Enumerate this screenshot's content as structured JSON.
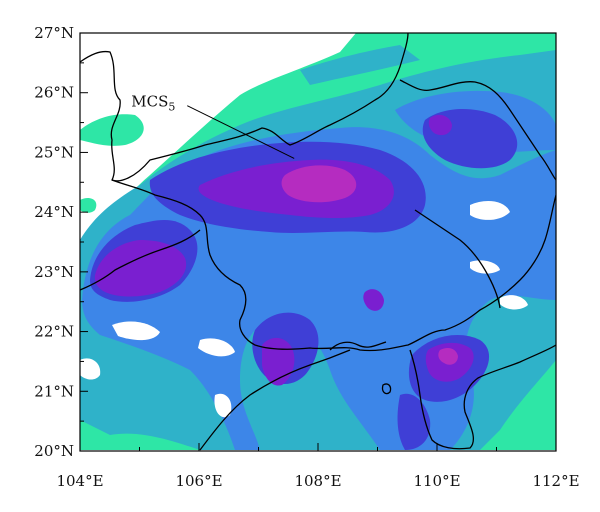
{
  "map": {
    "type": "contour-map",
    "colors": {
      "level1": "#2ee6a6",
      "level2": "#2fb2c9",
      "level3": "#3d86e8",
      "level4": "#3f3fd6",
      "level5": "#7a1fd0",
      "level6": "#b52cc0",
      "border": "#000000",
      "background": "#ffffff"
    },
    "lon_range": [
      104,
      112
    ],
    "lat_range": [
      20,
      27
    ],
    "x_ticks": [
      {
        "value": 104,
        "label": "104°E"
      },
      {
        "value": 106,
        "label": "106°E"
      },
      {
        "value": 108,
        "label": "108°E"
      },
      {
        "value": 110,
        "label": "110°E"
      },
      {
        "value": 112,
        "label": "112°E"
      }
    ],
    "y_ticks": [
      {
        "value": 20,
        "label": "20°N"
      },
      {
        "value": 21,
        "label": "21°N"
      },
      {
        "value": 22,
        "label": "22°N"
      },
      {
        "value": 23,
        "label": "23°N"
      },
      {
        "value": 24,
        "label": "24°N"
      },
      {
        "value": 25,
        "label": "25°N"
      },
      {
        "value": 26,
        "label": "26°N"
      },
      {
        "value": 27,
        "label": "27°N"
      }
    ],
    "annotation": {
      "main": "MCS",
      "sub": "5",
      "target_lon": 107.6,
      "target_lat": 24.9,
      "label_lon": 105.5,
      "label_lat": 25.85
    }
  }
}
